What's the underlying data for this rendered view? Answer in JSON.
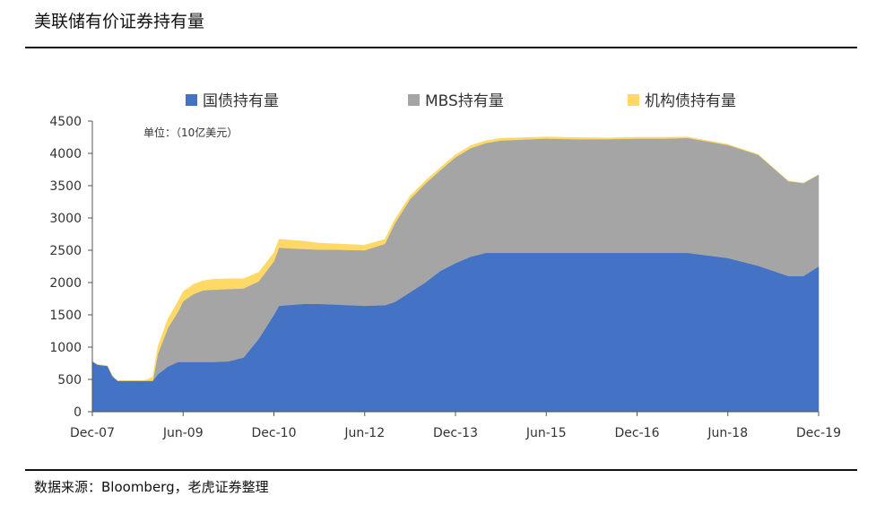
{
  "header": {
    "title": "美联储有价证券持有量"
  },
  "footer": {
    "source": "数据来源：Bloomberg，老虎证券整理"
  },
  "chart_data": {
    "type": "area",
    "stacked": true,
    "unit_note": "单位：（10亿美元）",
    "ylim": [
      0,
      4500
    ],
    "yticks": [
      0,
      500,
      1000,
      1500,
      2000,
      2500,
      3000,
      3500,
      4000,
      4500
    ],
    "xticks": [
      "Dec-07",
      "Jun-09",
      "Dec-10",
      "Jun-12",
      "Dec-13",
      "Jun-15",
      "Dec-16",
      "Jun-18",
      "Dec-19"
    ],
    "legend_position": "top",
    "grid": false,
    "x": [
      "Dec-07",
      "Jan-08",
      "Mar-08",
      "Apr-08",
      "May-08",
      "Jun-08",
      "Sep-08",
      "Oct-08",
      "Nov-08",
      "Dec-08",
      "Jan-09",
      "Mar-09",
      "May-09",
      "Jun-09",
      "Aug-09",
      "Oct-09",
      "Dec-09",
      "Mar-10",
      "Jun-10",
      "Sep-10",
      "Dec-10",
      "Jan-11",
      "Jun-11",
      "Sep-11",
      "Dec-11",
      "Jun-12",
      "Oct-12",
      "Dec-12",
      "Mar-13",
      "Jun-13",
      "Sep-13",
      "Dec-13",
      "Mar-14",
      "Jun-14",
      "Sep-14",
      "Dec-14",
      "Jun-15",
      "Dec-15",
      "Jun-16",
      "Dec-16",
      "Jun-17",
      "Oct-17",
      "Jun-18",
      "Dec-18",
      "Jun-19",
      "Sep-19",
      "Dec-19"
    ],
    "series": [
      {
        "name": "国债持有量",
        "color": "#4472c4",
        "values": [
          780,
          730,
          710,
          550,
          480,
          480,
          480,
          480,
          480,
          480,
          580,
          700,
          770,
          770,
          770,
          770,
          770,
          780,
          840,
          1130,
          1500,
          1640,
          1670,
          1670,
          1660,
          1640,
          1650,
          1700,
          1850,
          2000,
          2180,
          2300,
          2400,
          2460,
          2460,
          2460,
          2460,
          2460,
          2460,
          2460,
          2460,
          2460,
          2380,
          2260,
          2100,
          2100,
          2250
        ]
      },
      {
        "name": "MBS持有量",
        "color": "#a5a5a5",
        "values": [
          0,
          0,
          0,
          0,
          0,
          0,
          0,
          0,
          0,
          0,
          320,
          600,
          780,
          940,
          1050,
          1110,
          1120,
          1120,
          1070,
          890,
          830,
          900,
          850,
          840,
          850,
          860,
          950,
          1220,
          1440,
          1530,
          1560,
          1640,
          1680,
          1700,
          1740,
          1750,
          1770,
          1760,
          1760,
          1770,
          1770,
          1780,
          1750,
          1720,
          1470,
          1440,
          1420
        ]
      },
      {
        "name": "机构债持有量",
        "color": "#ffd966",
        "values": [
          0,
          0,
          0,
          0,
          0,
          0,
          0,
          0,
          20,
          60,
          110,
          140,
          160,
          150,
          150,
          150,
          160,
          160,
          150,
          140,
          130,
          130,
          120,
          100,
          90,
          80,
          70,
          60,
          50,
          45,
          40,
          40,
          40,
          35,
          35,
          30,
          25,
          25,
          20,
          20,
          20,
          15,
          10,
          5,
          3,
          2,
          2
        ]
      }
    ]
  }
}
